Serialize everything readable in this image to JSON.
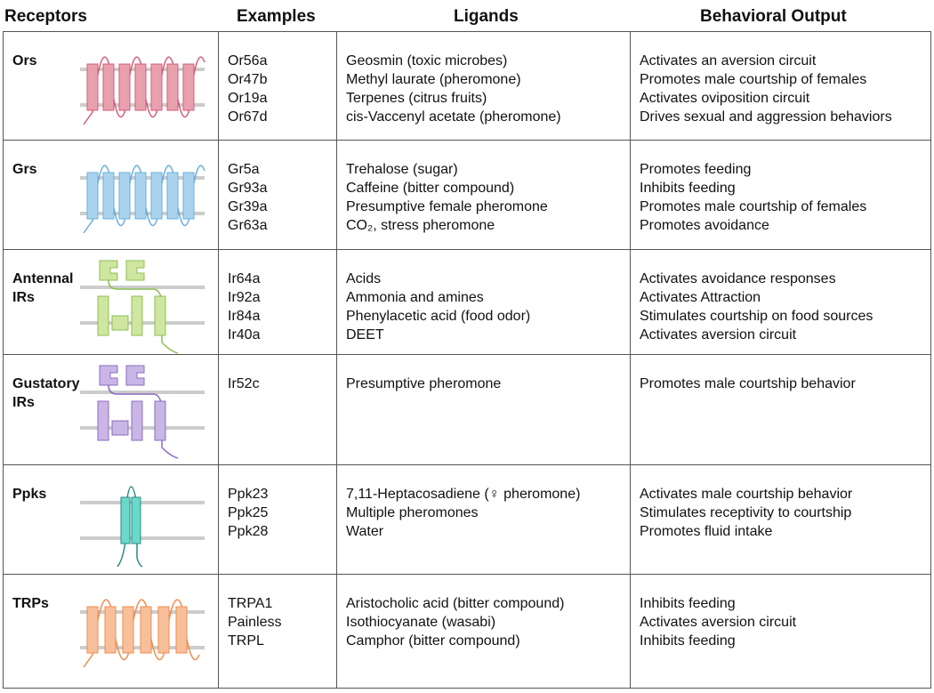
{
  "header": [
    "Receptors",
    "Examples",
    "Ligands",
    "Behavioral Output"
  ],
  "rows": [
    {
      "receptor": "Ors",
      "examples": [
        "Or56a",
        "Or47b",
        "Or19a",
        "Or67d"
      ],
      "ligands": [
        "Geosmin (toxic microbes)",
        "Methyl laurate (pheromone)",
        "Terpenes (citrus fruits)",
        "cis-Vaccenyl acetate (pheromone)"
      ],
      "outputs": [
        "Activates an aversion circuit",
        "Promotes male courtship of females",
        "Activates oviposition circuit",
        "Drives sexual and aggression behaviors"
      ]
    },
    {
      "receptor": "Grs",
      "examples": [
        "Gr5a",
        "Gr93a",
        "Gr39a",
        "Gr63a"
      ],
      "ligands": [
        "Trehalose (sugar)",
        "Caffeine (bitter compound)",
        "Presumptive female pheromone",
        "CO₂, stress pheromone"
      ],
      "outputs": [
        "Promotes feeding",
        "Inhibits feeding",
        "Promotes male courtship of females",
        "Promotes avoidance"
      ]
    },
    {
      "receptor": "Antennal IRs",
      "examples": [
        "Ir64a",
        "Ir92a",
        "Ir84a",
        "Ir40a"
      ],
      "ligands": [
        "Acids",
        "Ammonia and amines",
        "Phenylacetic acid (food odor)",
        "DEET"
      ],
      "outputs": [
        "Activates avoidance responses",
        "Activates Attraction",
        "Stimulates courtship on food sources",
        "Activates aversion circuit"
      ]
    },
    {
      "receptor": "Gustatory IRs",
      "examples": [
        "Ir52c"
      ],
      "ligands": [
        "Presumptive pheromone"
      ],
      "outputs": [
        "Promotes male courtship behavior"
      ]
    },
    {
      "receptor": "Ppks",
      "examples": [
        "Ppk23",
        "Ppk25",
        "Ppk28"
      ],
      "ligands": [
        "7,11-Heptacosadiene (♀ pheromone)",
        "Multiple pheromones",
        "Water"
      ],
      "outputs": [
        "Activates male courtship behavior",
        "Stimulates receptivity to courtship",
        "Promotes fluid intake"
      ]
    },
    {
      "receptor": "TRPs",
      "examples": [
        "TRPA1",
        "Painless",
        "TRPL"
      ],
      "ligands": [
        "Aristocholic acid (bitter compound)",
        "Isothiocyanate (wasabi)",
        "Camphor (bitter compound)"
      ],
      "outputs": [
        "Inhibits feeding",
        "Activates aversion circuit",
        "Inhibits feeding"
      ]
    }
  ]
}
